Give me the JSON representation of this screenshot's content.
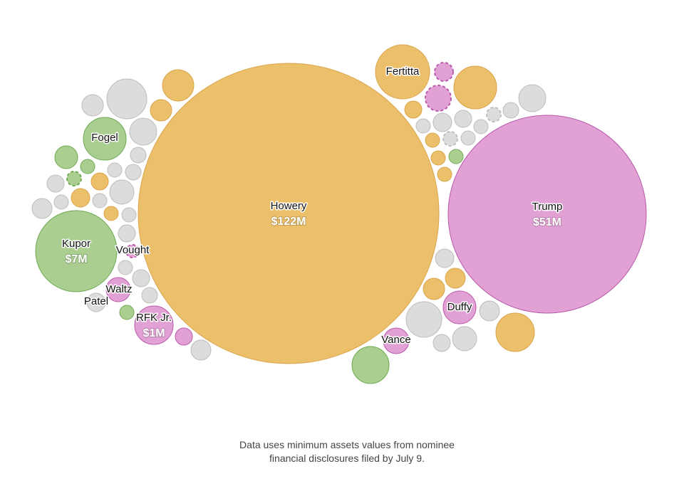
{
  "colors": {
    "orange": "#ECC06B",
    "pink": "#E2A1D5",
    "green": "#A9CE8F",
    "gray": "#DCDCDC",
    "orange_stroke": "#D9A44A",
    "pink_stroke": "#B95AAB",
    "green_stroke": "#6FAA55",
    "gray_stroke": "#BDBDBD"
  },
  "chart_data": {
    "type": "bubble",
    "title": "",
    "labeled": [
      {
        "name": "Howery",
        "value": "$122M",
        "category": "orange"
      },
      {
        "name": "Trump",
        "value": "$51M",
        "category": "pink"
      },
      {
        "name": "Kupor",
        "value": "$7M",
        "category": "green"
      },
      {
        "name": "RFK Jr.",
        "value": "$1M",
        "category": "pink"
      },
      {
        "name": "Fertitta",
        "value": "",
        "category": "orange"
      },
      {
        "name": "Fogel",
        "value": "",
        "category": "green"
      },
      {
        "name": "Duffy",
        "value": "",
        "category": "pink"
      },
      {
        "name": "Vance",
        "value": "",
        "category": "pink"
      },
      {
        "name": "Waltz",
        "value": "",
        "category": "pink"
      },
      {
        "name": "Patel",
        "value": "",
        "category": "gray"
      },
      {
        "name": "Vought",
        "value": "",
        "category": "pink"
      }
    ]
  },
  "footnote": {
    "line1": "Data uses minimum assets values from nominee",
    "line2": "financial disclosures filed by July 9."
  }
}
